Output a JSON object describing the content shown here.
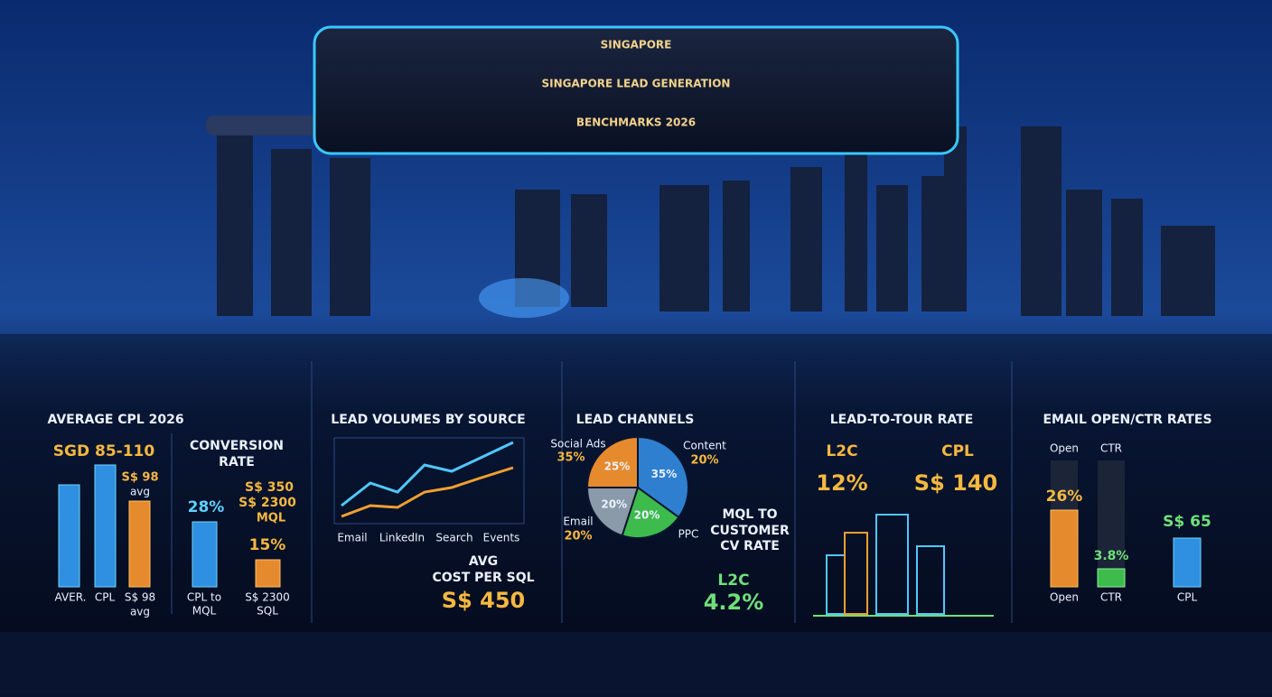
{
  "title": {
    "line1": "SINGAPORE",
    "line2": "SINGAPORE LEAD GENERATION",
    "line3": "BENCHMARKS 2026"
  },
  "cpl": {
    "heading": "AVERAGE CPL 2026",
    "range": "SGD 85-110",
    "bar_value": "S$ 98",
    "bar_note": "avg",
    "labels": [
      "AVER.",
      "CPL",
      "S$ 98",
      "avg"
    ]
  },
  "conversion": {
    "heading1": "CONVERSION",
    "heading2": "RATE",
    "left_value": "28%",
    "right_line1": "S$ 350",
    "right_line2": "S$ 2300",
    "right_line3": "MQL",
    "right_value": "15%",
    "left_label1": "CPL to",
    "left_label2": "MQL",
    "right_label1": "S$ 2300",
    "right_label2": "SQL"
  },
  "volumes": {
    "heading": "LEAD VOLUMES BY SOURCE",
    "sources": [
      "Email",
      "LinkedIn",
      "Search",
      "Events"
    ],
    "avg1": "AVG",
    "avg2": "COST PER SQL",
    "avg_value": "S$ 450"
  },
  "channels": {
    "heading": "LEAD CHANNELS",
    "pie": {
      "values": [
        35,
        20,
        20,
        25
      ],
      "value_labels": [
        "35%",
        "20%",
        "20%",
        "25%"
      ],
      "colors": [
        "#2f7fd0",
        "#3dbb4c",
        "#8a9aa8",
        "#e68a2e"
      ]
    },
    "social": "Social Ads",
    "social_value": "35%",
    "content": "Content",
    "content_value": "20%",
    "email": "Email",
    "email_value": "20%",
    "ppc": "PPC",
    "mql1": "MQL TO",
    "mql2": "CUSTOMER",
    "mql3": "CV RATE",
    "l2c": "L2C",
    "l2c_value": "4.2%"
  },
  "tour": {
    "heading": "LEAD-TO-TOUR RATE",
    "l2c": "L2C",
    "l2c_value": "12%",
    "cpl": "CPL",
    "cpl_value": "S$ 140"
  },
  "email": {
    "heading": "EMAIL OPEN/CTR RATES",
    "open": "Open",
    "ctr": "CTR",
    "open_value": "26%",
    "ctr_value": "3.8%",
    "cpl_value": "S$ 65",
    "bottom_labels": [
      "Open",
      "CTR",
      "CPL"
    ]
  }
}
